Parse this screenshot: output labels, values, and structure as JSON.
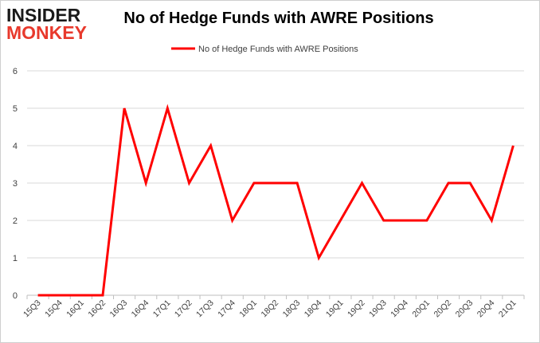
{
  "logo": {
    "line1": "INSIDER",
    "line2": "MONKEY"
  },
  "colors": {
    "series": "#ff0000",
    "grid": "#d9d9d9",
    "axis": "#bfbfbf",
    "text": "#404040",
    "logo_red": "#e8392c"
  },
  "chart_data": {
    "type": "line",
    "title": "No of Hedge Funds with AWRE Positions",
    "xlabel": "",
    "ylabel": "",
    "ylim": [
      0,
      6
    ],
    "yticks": [
      0,
      1,
      2,
      3,
      4,
      5,
      6
    ],
    "grid": true,
    "legend_position": "top-center",
    "categories": [
      "15Q3",
      "15Q4",
      "16Q1",
      "16Q2",
      "16Q3",
      "16Q4",
      "17Q1",
      "17Q2",
      "17Q3",
      "17Q4",
      "18Q1",
      "18Q2",
      "18Q3",
      "18Q4",
      "19Q1",
      "19Q2",
      "19Q3",
      "19Q4",
      "20Q1",
      "20Q2",
      "20Q3",
      "20Q4",
      "21Q1"
    ],
    "series": [
      {
        "name": "No of Hedge Funds with AWRE Positions",
        "color": "#ff0000",
        "values": [
          0,
          0,
          0,
          0,
          5,
          3,
          5,
          3,
          4,
          2,
          3,
          3,
          3,
          1,
          2,
          3,
          2,
          2,
          2,
          3,
          3,
          2,
          4
        ]
      }
    ]
  }
}
